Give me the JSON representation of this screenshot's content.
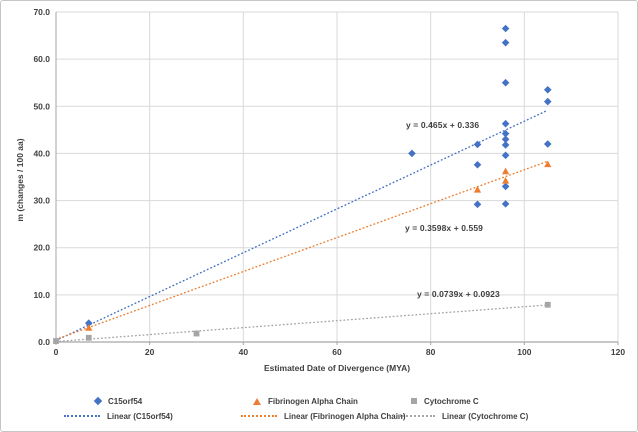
{
  "chart_data": {
    "type": "scatter",
    "title": "",
    "xlabel": "Estimated Date of Divergence (MYA)",
    "ylabel": "m (changes / 100 aa)",
    "xlim": [
      0,
      120
    ],
    "ylim": [
      0,
      70
    ],
    "x_ticks": [
      0,
      20,
      40,
      60,
      80,
      100,
      120
    ],
    "x_tick_labels": [
      "0",
      "20",
      "40",
      "60",
      "80",
      "100",
      "120"
    ],
    "y_ticks": [
      0,
      10,
      20,
      30,
      40,
      50,
      60,
      70
    ],
    "y_tick_labels": [
      "0.0",
      "10.0",
      "20.0",
      "30.0",
      "40.0",
      "50.0",
      "60.0",
      "70.0"
    ],
    "grid": true,
    "legend_position": "bottom",
    "series": [
      {
        "name": "C15orf54",
        "marker": "diamond",
        "color": "#4472C4",
        "points": [
          [
            7,
            4.0
          ],
          [
            76,
            40.0
          ],
          [
            90,
            41.9
          ],
          [
            90,
            37.6
          ],
          [
            90,
            29.2
          ],
          [
            96,
            66.5
          ],
          [
            96,
            63.5
          ],
          [
            96,
            55.0
          ],
          [
            96,
            46.3
          ],
          [
            96,
            44.2
          ],
          [
            96,
            43.0
          ],
          [
            96,
            41.8
          ],
          [
            96,
            39.6
          ],
          [
            96,
            33.0
          ],
          [
            96,
            29.3
          ],
          [
            105,
            53.5
          ],
          [
            105,
            51.0
          ],
          [
            105,
            42.0
          ]
        ]
      },
      {
        "name": "Fibrinogen Alpha Chain",
        "marker": "triangle",
        "color": "#ED7D31",
        "points": [
          [
            7,
            3.0
          ],
          [
            90,
            32.3
          ],
          [
            96,
            36.2
          ],
          [
            96,
            34.2
          ],
          [
            105,
            37.7
          ]
        ]
      },
      {
        "name": "Cytochrome C",
        "marker": "square",
        "color": "#A5A5A5",
        "points": [
          [
            0,
            0.2
          ],
          [
            7,
            0.9
          ],
          [
            30,
            1.8
          ],
          [
            105,
            7.9
          ]
        ]
      }
    ],
    "trendlines": [
      {
        "name": "Linear (C15orf54)",
        "color": "#4472C4",
        "slope": 0.465,
        "intercept": 0.336,
        "equation": "y = 0.465x + 0.336",
        "x_range": [
          0,
          105
        ]
      },
      {
        "name": "Linear (Fibrinogen Alpha Chain)",
        "color": "#ED7D31",
        "slope": 0.3598,
        "intercept": 0.559,
        "equation": "y = 0.3598x + 0.559",
        "x_range": [
          0,
          105
        ]
      },
      {
        "name": "Linear (Cytochrome C)",
        "color": "#A5A5A5",
        "slope": 0.0739,
        "intercept": 0.0923,
        "equation": "y = 0.0739x + 0.0923",
        "x_range": [
          0,
          105
        ]
      }
    ],
    "colors": {
      "text": "#404040",
      "grid": "#d9d9d9",
      "axis": "#a6a6a6"
    }
  }
}
